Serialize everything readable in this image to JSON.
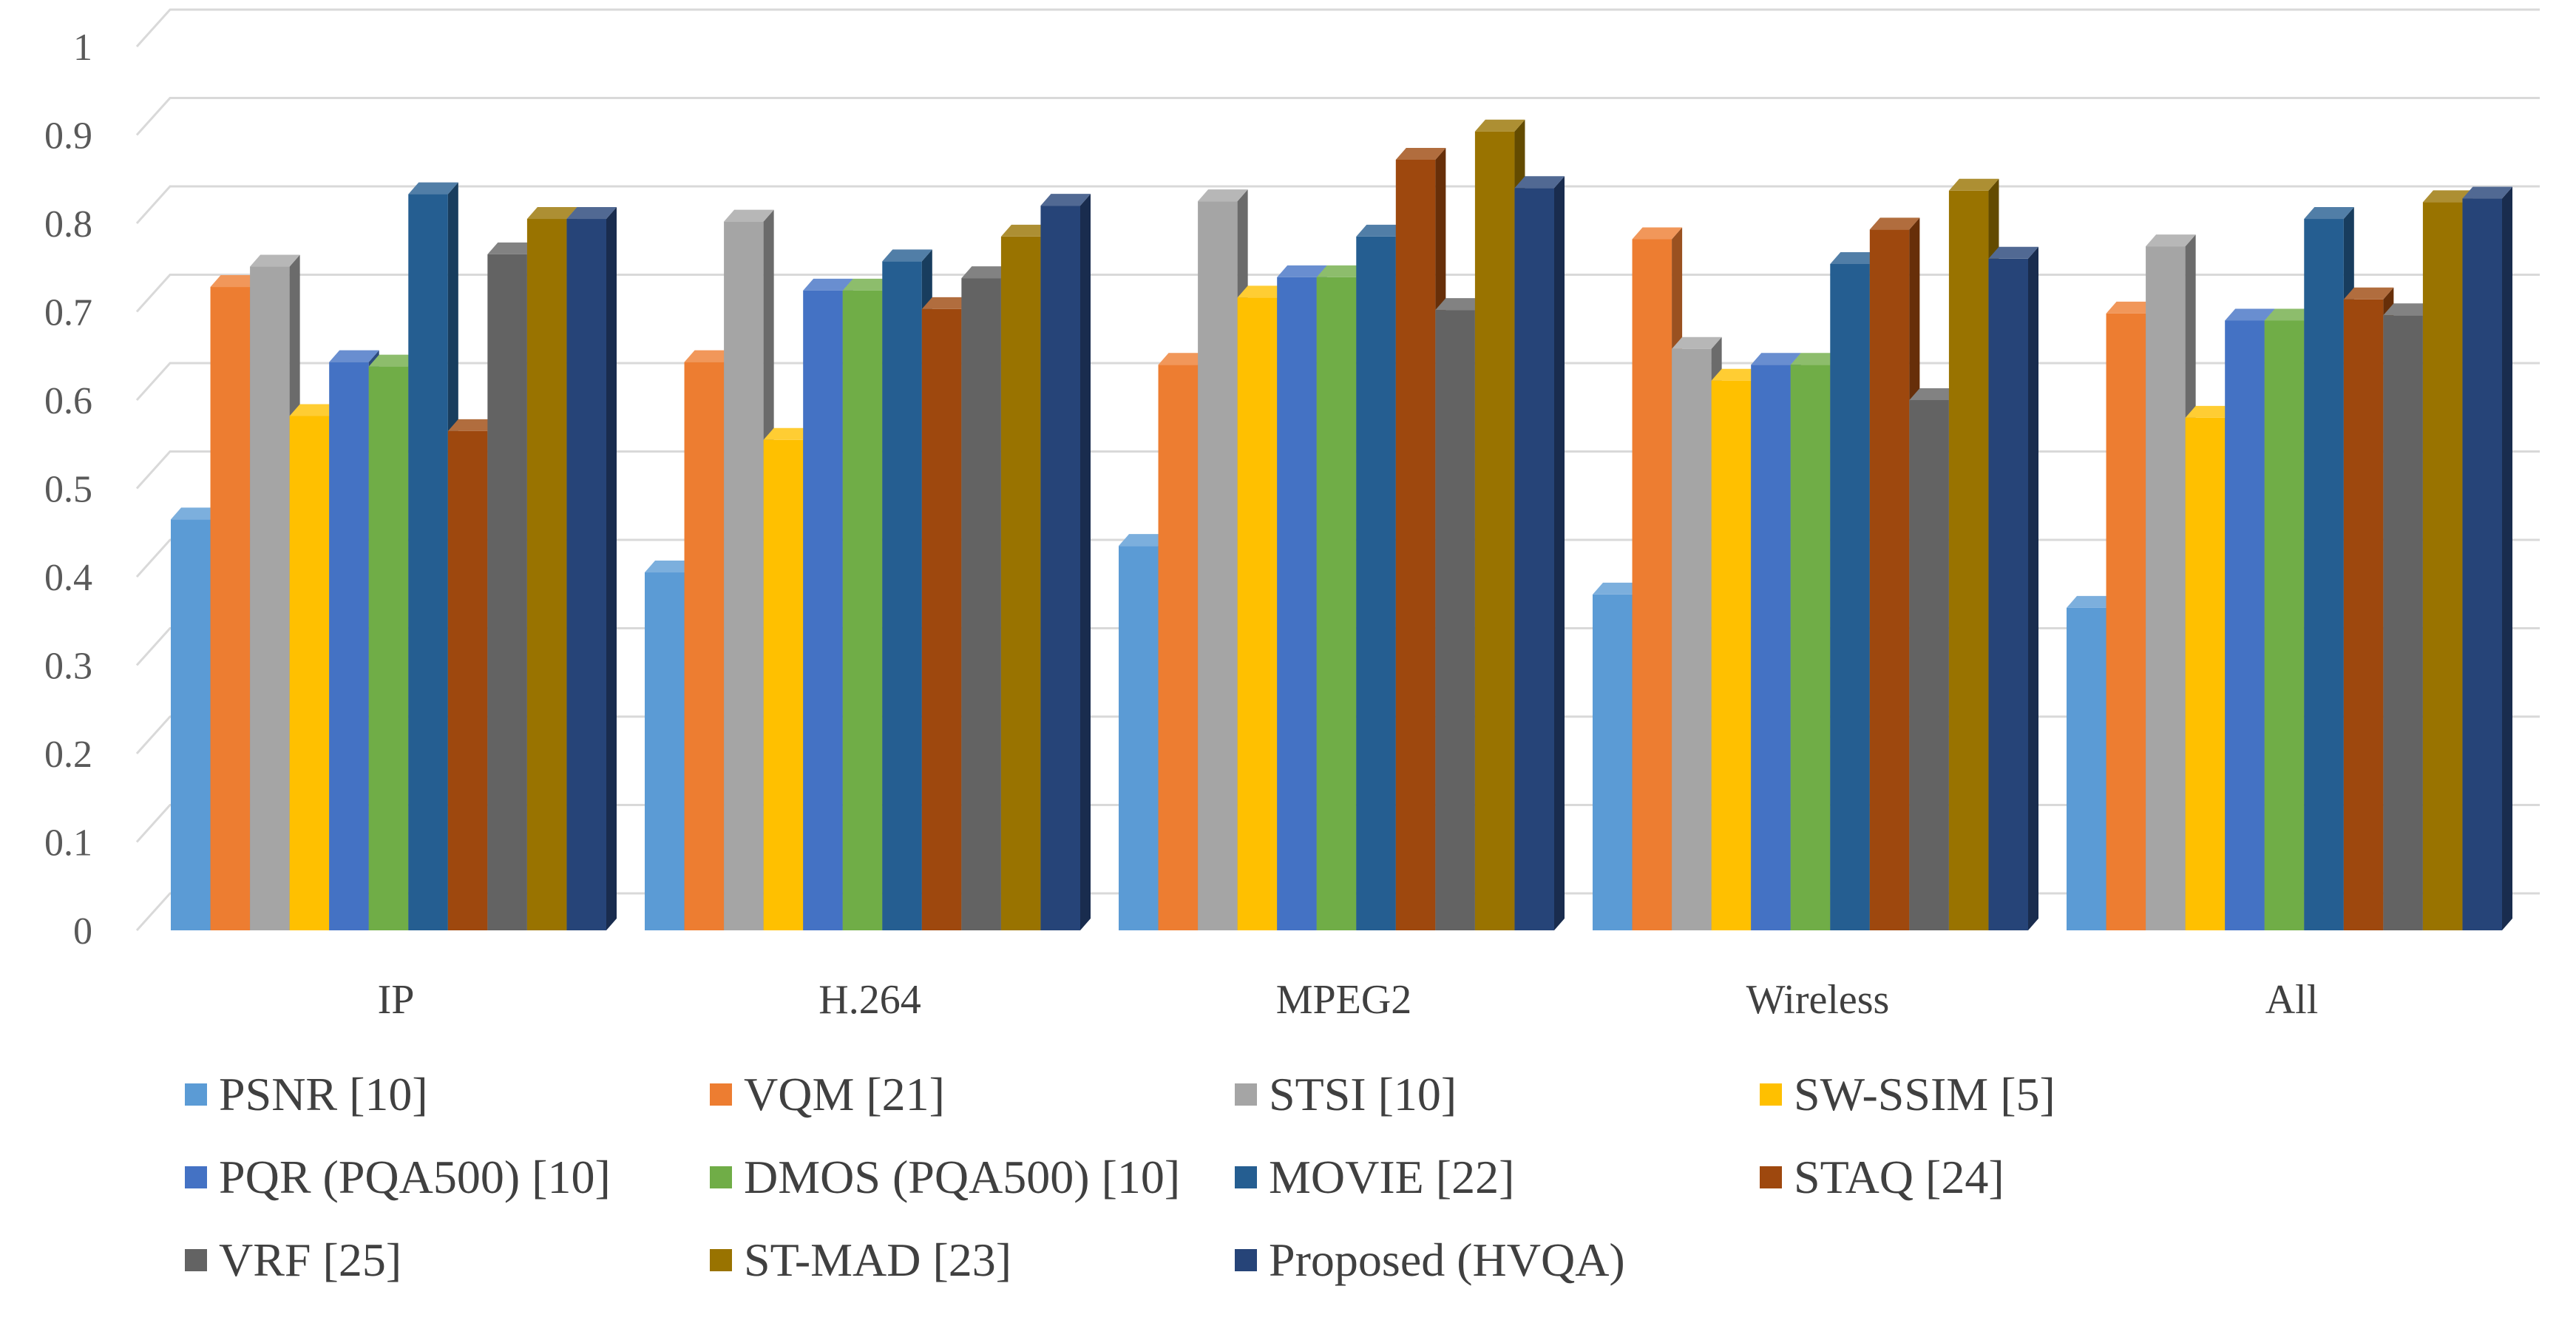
{
  "chart_data": {
    "type": "bar",
    "title": "",
    "xlabel": "",
    "ylabel": "",
    "ylim": [
      0,
      1
    ],
    "yticks": [
      0,
      0.1,
      0.2,
      0.3,
      0.4,
      0.5,
      0.6,
      0.7,
      0.8,
      0.9,
      1
    ],
    "ytick_labels": [
      "0",
      "0.1",
      "0.2",
      "0.3",
      "0.4",
      "0.5",
      "0.6",
      "0.7",
      "0.8",
      "0.9",
      "1"
    ],
    "grid": true,
    "legend_position": "bottom",
    "categories": [
      "IP",
      "H.264",
      "MPEG2",
      "Wireless",
      "All"
    ],
    "series": [
      {
        "name": "PSNR [10]",
        "color": "#5B9BD5",
        "values": [
          0.465,
          0.405,
          0.435,
          0.38,
          0.365
        ]
      },
      {
        "name": "VQM [21]",
        "color": "#ED7D31",
        "values": [
          0.728,
          0.643,
          0.64,
          0.782,
          0.698
        ]
      },
      {
        "name": "STSI [10]",
        "color": "#A5A5A5",
        "values": [
          0.751,
          0.802,
          0.825,
          0.658,
          0.774
        ]
      },
      {
        "name": "SW-SSIM [5]",
        "color": "#FFC000",
        "values": [
          0.582,
          0.555,
          0.716,
          0.622,
          0.58
        ]
      },
      {
        "name": "PQR (PQA500) [10]",
        "color": "#4472C4",
        "values": [
          0.643,
          0.724,
          0.739,
          0.64,
          0.69
        ]
      },
      {
        "name": "DMOS (PQA500) [10]",
        "color": "#70AD47",
        "values": [
          0.638,
          0.724,
          0.739,
          0.64,
          0.69
        ]
      },
      {
        "name": "MOVIE [22]",
        "color": "#255E91",
        "values": [
          0.833,
          0.757,
          0.785,
          0.754,
          0.805
        ]
      },
      {
        "name": "STAQ [24]",
        "color": "#9E480E",
        "values": [
          0.565,
          0.703,
          0.872,
          0.793,
          0.714
        ]
      },
      {
        "name": "VRF [25]",
        "color": "#636363",
        "values": [
          0.765,
          0.738,
          0.702,
          0.6,
          0.696
        ]
      },
      {
        "name": "ST-MAD [23]",
        "color": "#997300",
        "values": [
          0.805,
          0.785,
          0.904,
          0.837,
          0.824
        ]
      },
      {
        "name": "Proposed (HVQA)",
        "color": "#264478",
        "values": [
          0.805,
          0.82,
          0.84,
          0.76,
          0.828
        ]
      }
    ]
  }
}
